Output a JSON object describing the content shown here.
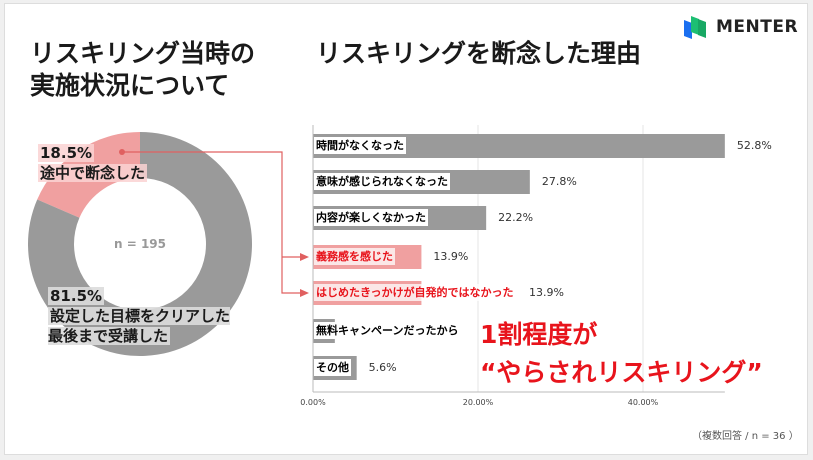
{
  "header": {
    "left_title": "リスキリング当時の\n実施状況について",
    "right_title": "リスキリングを断念した理由",
    "logo_text": "MENTER"
  },
  "chart_data": [
    {
      "type": "pie",
      "title": "リスキリング当時の実施状況について",
      "center_label": "n = 195",
      "slices": [
        {
          "value": 18.5,
          "value_label": "18.5%",
          "label": "途中で断念した",
          "color": "#f0a0a0"
        },
        {
          "value": 81.5,
          "value_label": "81.5%",
          "label": "設定した目標をクリアした\n最後まで受講した",
          "color": "#9a9a9a"
        }
      ]
    },
    {
      "type": "bar",
      "orientation": "horizontal",
      "title": "リスキリングを断念した理由",
      "categories": [
        "時間がなくなった",
        "意味が感じられなくなった",
        "内容が楽しくなかった",
        "義務感を感じた",
        "はじめたきっかけが自発的ではなかった",
        "無料キャンペーンだったから",
        "その他"
      ],
      "values": [
        52.8,
        27.8,
        22.2,
        13.9,
        13.9,
        2.8,
        5.6
      ],
      "value_labels": [
        "52.8%",
        "27.8%",
        "22.2%",
        "13.9%",
        "13.9%",
        "",
        "5.6%"
      ],
      "highlight": [
        false,
        false,
        false,
        true,
        true,
        false,
        false
      ],
      "xticks": [
        "0.00%",
        "20.00%",
        "40.00%"
      ],
      "xlim": [
        0,
        52.8
      ],
      "grid": true,
      "colors": {
        "normal": "#9a9a9a",
        "highlight": "#f0a0a0",
        "highlight_text": "#e8141c"
      }
    }
  ],
  "callout": "1割程度が\n“やらされリスキリング”",
  "footnote": "（複数回答 / n = 36 ）"
}
